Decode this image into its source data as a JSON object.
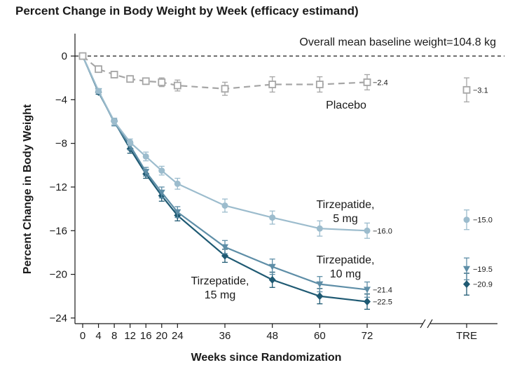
{
  "chart_data": {
    "type": "line",
    "title": "Percent Change in Body Weight by Week (efficacy estimand)",
    "xlabel": "Weeks since Randomization",
    "ylabel": "Percent Change in Body Weight",
    "note": "Overall mean baseline weight=104.8 kg",
    "x": [
      0,
      4,
      8,
      12,
      16,
      20,
      24,
      36,
      48,
      60,
      72
    ],
    "x_tick_labels": [
      "0",
      "4",
      "8",
      "12",
      "16",
      "20",
      "24",
      "36",
      "48",
      "60",
      "72",
      "TRE"
    ],
    "ylim": [
      -24,
      0
    ],
    "y_ticks": [
      0,
      -4,
      -8,
      -12,
      -16,
      -20,
      -24
    ],
    "y_tick_labels": [
      "0",
      "−4",
      "−8",
      "−12",
      "−16",
      "−20",
      "−24"
    ],
    "series": [
      {
        "name": "Placebo",
        "label_lines": [
          "Placebo"
        ],
        "color": "#a6a6a6",
        "marker": "square-open",
        "dashed": true,
        "values": [
          0,
          -1.2,
          -1.7,
          -2.1,
          -2.3,
          -2.4,
          -2.7,
          -3.0,
          -2.6,
          -2.6,
          -2.4
        ],
        "errors": [
          0,
          0.3,
          0.3,
          0.3,
          0.3,
          0.4,
          0.5,
          0.6,
          0.7,
          0.7,
          0.7
        ],
        "end_label": "−2.4",
        "tre": -3.1,
        "tre_error": 1.1,
        "tre_label": "−3.1"
      },
      {
        "name": "Tirzepatide, 5 mg",
        "label_lines": [
          "Tirzepatide,",
          "5 mg"
        ],
        "color": "#9cbccd",
        "marker": "circle",
        "dashed": false,
        "values": [
          0,
          -3.2,
          -6.0,
          -7.9,
          -9.2,
          -10.5,
          -11.7,
          -13.7,
          -14.8,
          -15.8,
          -16.0
        ],
        "errors": [
          0,
          0.2,
          0.3,
          0.3,
          0.4,
          0.4,
          0.5,
          0.6,
          0.6,
          0.7,
          0.7
        ],
        "end_label": "−16.0",
        "tre": -15.0,
        "tre_error": 0.9,
        "tre_label": "−15.0"
      },
      {
        "name": "Tirzepatide, 10 mg",
        "label_lines": [
          "Tirzepatide,",
          "10 mg"
        ],
        "color": "#5e8ea7",
        "marker": "triangle-down",
        "dashed": false,
        "values": [
          0,
          -3.2,
          -6.1,
          -8.2,
          -10.6,
          -12.5,
          -14.3,
          -17.5,
          -19.3,
          -20.9,
          -21.4
        ],
        "errors": [
          0,
          0.2,
          0.3,
          0.4,
          0.4,
          0.5,
          0.5,
          0.6,
          0.7,
          0.7,
          0.7
        ],
        "end_label": "−21.4",
        "tre": -19.5,
        "tre_error": 1.0,
        "tre_label": "−19.5"
      },
      {
        "name": "Tirzepatide, 15 mg",
        "label_lines": [
          "Tirzepatide,",
          "15 mg"
        ],
        "color": "#1f5a73",
        "marker": "diamond",
        "dashed": false,
        "values": [
          0,
          -3.3,
          -6.0,
          -8.5,
          -10.8,
          -12.8,
          -14.6,
          -18.3,
          -20.5,
          -22.0,
          -22.5
        ],
        "errors": [
          0,
          0.2,
          0.3,
          0.4,
          0.4,
          0.5,
          0.5,
          0.6,
          0.7,
          0.7,
          0.7
        ],
        "end_label": "−22.5",
        "tre": -20.9,
        "tre_error": 1.0,
        "tre_label": "−20.9"
      }
    ]
  }
}
